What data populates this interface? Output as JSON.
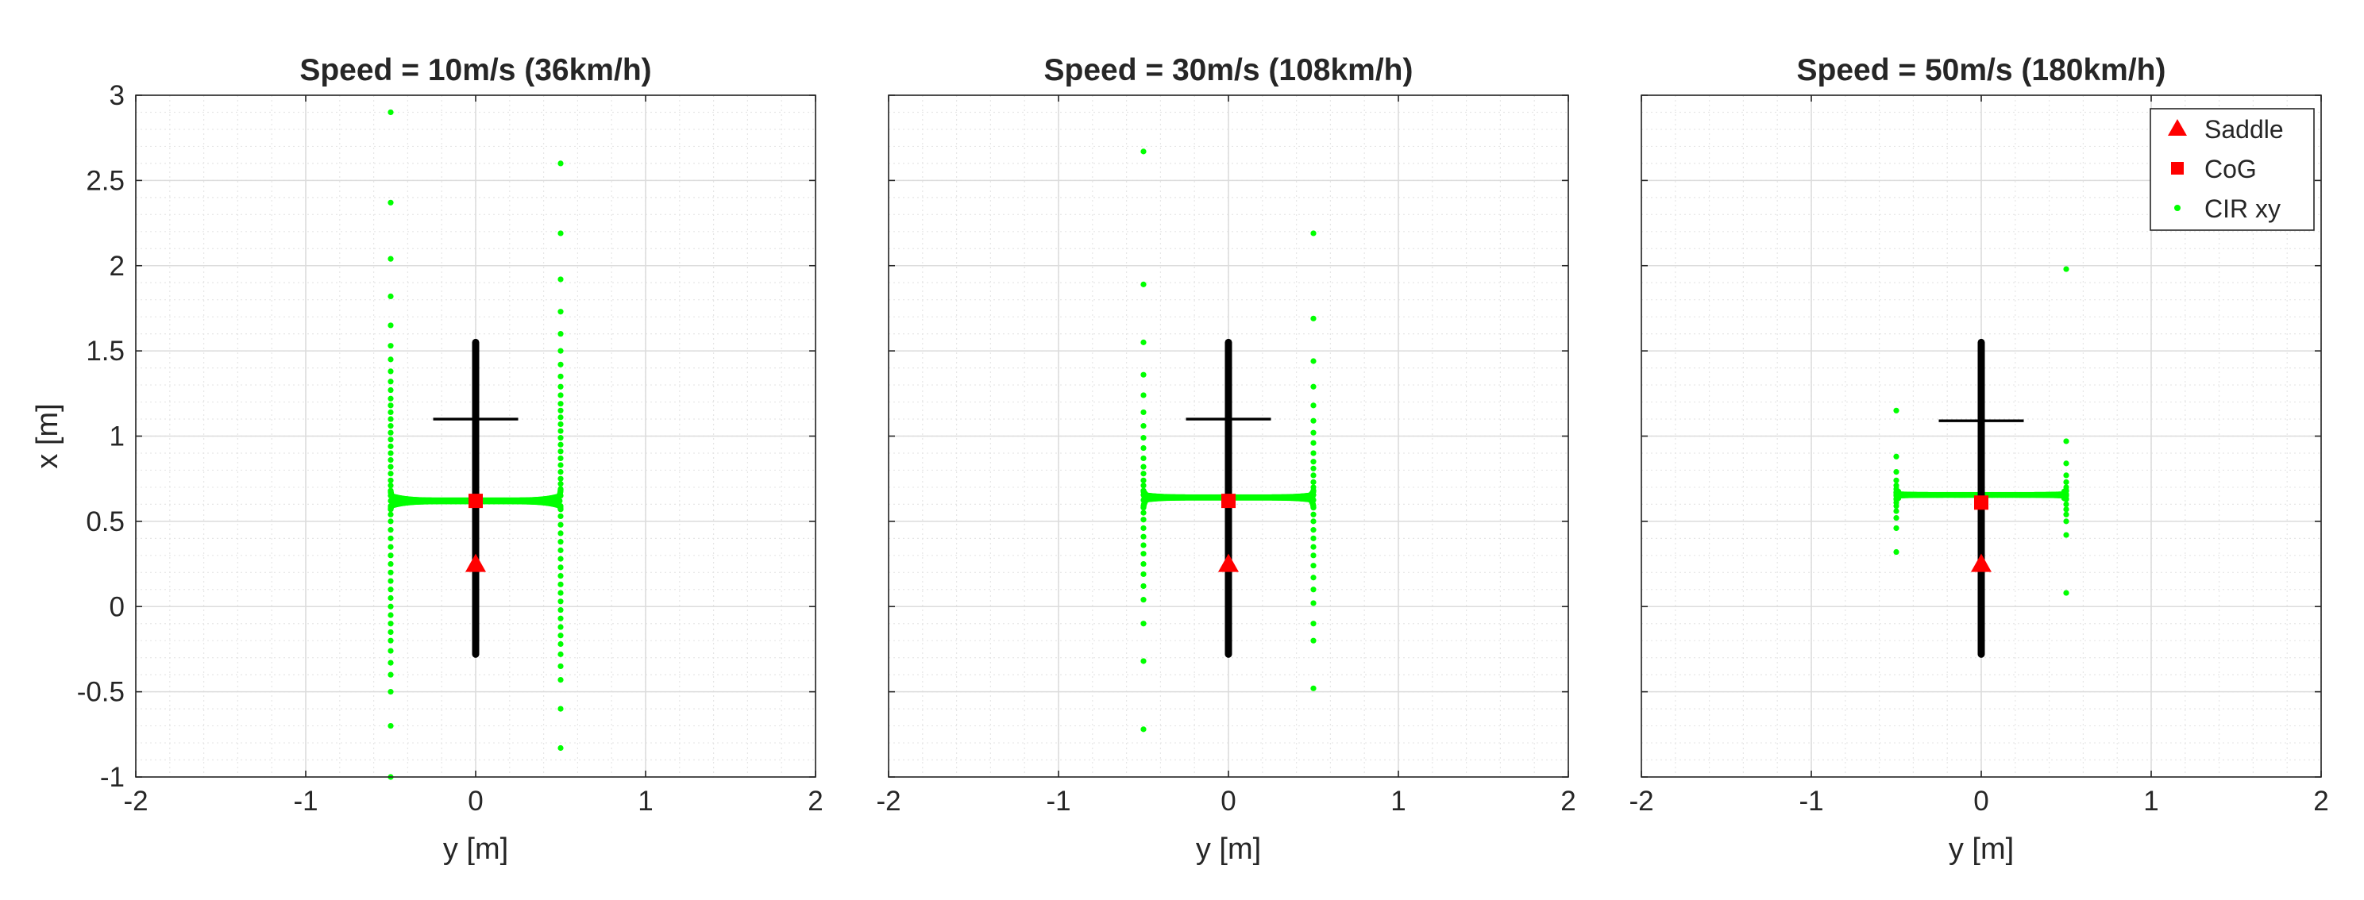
{
  "chart_data": [
    {
      "type": "scatter",
      "title": "Speed = 10m/s (36km/h)",
      "xlabel": "y [m]",
      "ylabel": "x [m]",
      "xlim": [
        -2,
        2
      ],
      "ylim": [
        -1,
        3
      ],
      "xticks": [
        "-2",
        "-1",
        "0",
        "1",
        "2"
      ],
      "yticks": [
        "-1",
        "-0.5",
        "0",
        "0.5",
        "1",
        "1.5",
        "2",
        "2.5",
        "3"
      ],
      "grid": true,
      "minor_grid": true,
      "bike_geometry": {
        "frame": {
          "y": 0,
          "x": [
            -0.28,
            1.55
          ]
        },
        "handlebar": {
          "x": 1.1,
          "y": [
            -0.25,
            0.25
          ]
        }
      },
      "series": [
        {
          "name": "Saddle",
          "marker": "triangle",
          "color": "#ff0000",
          "x": [
            0
          ],
          "y": [
            0.25
          ]
        },
        {
          "name": "CoG",
          "marker": "square",
          "color": "#ff0000",
          "x": [
            0
          ],
          "y": [
            0.62
          ]
        },
        {
          "name": "CIR xy",
          "marker": "dot",
          "color": "#00ff00",
          "branches": [
            {
              "y": -0.5,
              "x": [
                2.9,
                2.37,
                2.04,
                1.82,
                1.65,
                1.53,
                1.45,
                1.38,
                1.32,
                1.27,
                1.22,
                1.18,
                1.14,
                1.1,
                1.06,
                1.02,
                0.98,
                0.94,
                0.9,
                0.86,
                0.82,
                0.78,
                0.74,
                0.71,
                0.68
              ],
              "direction": "down_to_center"
            },
            {
              "y": -0.5,
              "x": [
                0.57,
                0.54,
                0.5,
                0.45,
                0.4,
                0.35,
                0.3,
                0.25,
                0.2,
                0.15,
                0.1,
                0.05,
                0.0,
                -0.05,
                -0.1,
                -0.15,
                -0.2,
                -0.26,
                -0.33,
                -0.4,
                -0.5,
                -0.7,
                -1.0
              ],
              "direction": "down_to_bottom"
            },
            {
              "y": 0.5,
              "x": [
                2.6,
                2.19,
                1.92,
                1.73,
                1.6,
                1.5,
                1.42,
                1.35,
                1.29,
                1.24,
                1.19,
                1.15,
                1.11,
                1.07,
                1.03,
                0.99,
                0.95,
                0.91,
                0.87,
                0.83,
                0.79,
                0.75,
                0.72,
                0.69
              ],
              "direction": "down_to_center"
            },
            {
              "y": 0.5,
              "x": [
                0.57,
                0.53,
                0.48,
                0.43,
                0.38,
                0.33,
                0.28,
                0.23,
                0.18,
                0.13,
                0.08,
                0.03,
                -0.02,
                -0.07,
                -0.12,
                -0.17,
                -0.22,
                -0.28,
                -0.35,
                -0.43,
                -0.6,
                -0.83
              ],
              "direction": "down_to_bottom"
            }
          ],
          "center_band": {
            "y_range": [
              -0.5,
              0.5
            ],
            "x_center": 0.62,
            "spread": 0.06
          }
        }
      ]
    },
    {
      "type": "scatter",
      "title": "Speed = 30m/s (108km/h)",
      "xlabel": "y [m]",
      "ylabel": "",
      "xlim": [
        -2,
        2
      ],
      "ylim": [
        -1,
        3
      ],
      "xticks": [
        "-2",
        "-1",
        "0",
        "1",
        "2"
      ],
      "yticks": [],
      "grid": true,
      "minor_grid": true,
      "bike_geometry": {
        "frame": {
          "y": 0,
          "x": [
            -0.28,
            1.55
          ]
        },
        "handlebar": {
          "x": 1.1,
          "y": [
            -0.25,
            0.25
          ]
        }
      },
      "series": [
        {
          "name": "Saddle",
          "marker": "triangle",
          "color": "#ff0000",
          "x": [
            0
          ],
          "y": [
            0.25
          ]
        },
        {
          "name": "CoG",
          "marker": "square",
          "color": "#ff0000",
          "x": [
            0
          ],
          "y": [
            0.62
          ]
        },
        {
          "name": "CIR xy",
          "marker": "dot",
          "color": "#00ff00",
          "branches": [
            {
              "y": -0.5,
              "x": [
                2.67,
                1.89,
                1.55,
                1.36,
                1.24,
                1.14,
                1.06,
                0.99,
                0.93,
                0.87,
                0.82,
                0.78,
                0.74,
                0.71,
                0.68
              ],
              "direction": "down_to_center"
            },
            {
              "y": -0.5,
              "x": [
                0.58,
                0.55,
                0.51,
                0.46,
                0.41,
                0.36,
                0.31,
                0.25,
                0.19,
                0.12,
                0.04,
                -0.1,
                -0.32,
                -0.72
              ],
              "direction": "down_to_bottom"
            },
            {
              "y": 0.5,
              "x": [
                2.19,
                1.69,
                1.44,
                1.29,
                1.18,
                1.09,
                1.02,
                0.96,
                0.9,
                0.85,
                0.81,
                0.77,
                0.73,
                0.7,
                0.68
              ],
              "direction": "down_to_center"
            },
            {
              "y": 0.5,
              "x": [
                0.58,
                0.54,
                0.5,
                0.45,
                0.4,
                0.35,
                0.3,
                0.24,
                0.17,
                0.1,
                0.02,
                -0.1,
                -0.2,
                -0.48
              ],
              "direction": "down_to_bottom"
            }
          ],
          "center_band": {
            "y_range": [
              -0.5,
              0.5
            ],
            "x_center": 0.64,
            "spread": 0.03
          }
        }
      ]
    },
    {
      "type": "scatter",
      "title": "Speed = 50m/s (180km/h)",
      "xlabel": "y [m]",
      "ylabel": "",
      "xlim": [
        -2,
        2
      ],
      "ylim": [
        -1,
        3
      ],
      "xticks": [
        "-2",
        "-1",
        "0",
        "1",
        "2"
      ],
      "yticks": [],
      "grid": true,
      "minor_grid": true,
      "legend": {
        "placement": "top-right",
        "entries": [
          "Saddle",
          "CoG",
          "CIR xy"
        ]
      },
      "bike_geometry": {
        "frame": {
          "y": 0,
          "x": [
            -0.28,
            1.55
          ]
        },
        "handlebar": {
          "x": 1.09,
          "y": [
            -0.25,
            0.25
          ]
        }
      },
      "series": [
        {
          "name": "Saddle",
          "marker": "triangle",
          "color": "#ff0000",
          "x": [
            0
          ],
          "y": [
            0.25
          ]
        },
        {
          "name": "CoG",
          "marker": "square",
          "color": "#ff0000",
          "x": [
            0
          ],
          "y": [
            0.61
          ]
        },
        {
          "name": "CIR xy",
          "marker": "dot",
          "color": "#00ff00",
          "branches": [
            {
              "y": -0.5,
              "x": [
                1.15,
                0.88,
                0.79,
                0.74,
                0.71,
                0.69,
                0.67
              ],
              "direction": "down_to_center"
            },
            {
              "y": -0.5,
              "x": [
                0.63,
                0.61,
                0.59,
                0.56,
                0.52,
                0.46,
                0.32
              ],
              "direction": "down_to_bottom"
            },
            {
              "y": 0.5,
              "x": [
                1.98,
                0.97,
                0.84,
                0.77,
                0.73,
                0.7,
                0.68
              ],
              "direction": "down_to_center"
            },
            {
              "y": 0.5,
              "x": [
                0.63,
                0.6,
                0.57,
                0.54,
                0.5,
                0.42,
                0.08
              ],
              "direction": "down_to_bottom"
            }
          ],
          "center_band": {
            "y_range": [
              -0.5,
              0.5
            ],
            "x_center": 0.655,
            "spread": 0.01
          }
        }
      ]
    }
  ]
}
